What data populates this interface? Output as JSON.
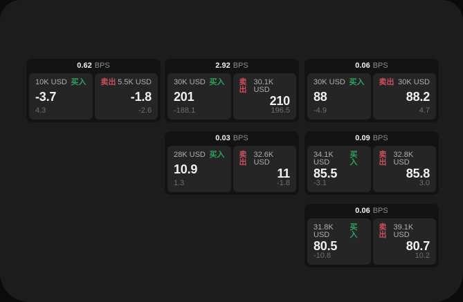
{
  "labels": {
    "bps_unit": "BPS",
    "buy": "买入",
    "sell": "卖出"
  },
  "colors": {
    "backdrop": "#0b0b0b",
    "page_bg": "#1c1c1c",
    "card_bg": "#131313",
    "panel_bg": "#252525",
    "buy_green": "#2fa35e",
    "sell_red": "#cc4f5e",
    "value_white": "#f2f2f2",
    "muted_gray": "#6f6f6f"
  },
  "cards": [
    {
      "bps": "0.62",
      "col": 0,
      "row": 0,
      "buy": {
        "amount": "10K USD",
        "value": "-3.7",
        "sub": "4.3"
      },
      "sell": {
        "amount": "5.5K USD",
        "value": "-1.8",
        "sub": "-2.6"
      }
    },
    {
      "bps": "2.92",
      "col": 1,
      "row": 0,
      "buy": {
        "amount": "30K USD",
        "value": "201",
        "sub": "-188.1"
      },
      "sell": {
        "amount": "30.1K USD",
        "value": "210",
        "sub": "196.5"
      }
    },
    {
      "bps": "0.06",
      "col": 2,
      "row": 0,
      "buy": {
        "amount": "30K USD",
        "value": "88",
        "sub": "-4.9"
      },
      "sell": {
        "amount": "30K USD",
        "value": "88.2",
        "sub": "4.7"
      }
    },
    {
      "bps": "0.03",
      "col": 1,
      "row": 1,
      "buy": {
        "amount": "28K USD",
        "value": "10.9",
        "sub": "1.3"
      },
      "sell": {
        "amount": "32.6K USD",
        "value": "11",
        "sub": "-1.8"
      }
    },
    {
      "bps": "0.09",
      "col": 2,
      "row": 1,
      "buy": {
        "amount": "34.1K USD",
        "value": "85.5",
        "sub": "-3.1"
      },
      "sell": {
        "amount": "32.8K USD",
        "value": "85.8",
        "sub": "3.0"
      }
    },
    {
      "bps": "0.06",
      "col": 2,
      "row": 2,
      "buy": {
        "amount": "31.8K USD",
        "value": "80.5",
        "sub": "-10.8"
      },
      "sell": {
        "amount": "39.1K USD",
        "value": "80.7",
        "sub": "10.2"
      }
    }
  ]
}
